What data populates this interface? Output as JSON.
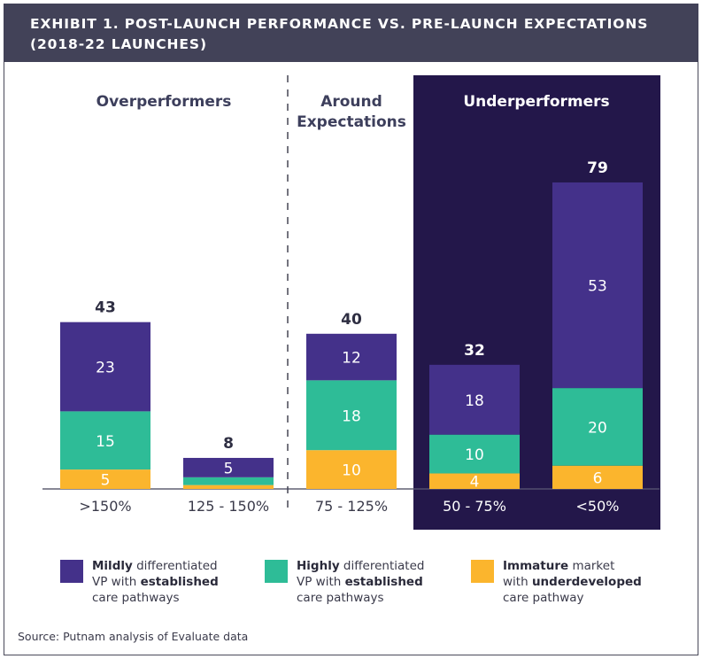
{
  "header": {
    "line1": "EXHIBIT 1. POST-LAUNCH PERFORMANCE VS. PRE-LAUNCH EXPECTATIONS",
    "line2": "(2018-22 LAUNCHES)"
  },
  "colors": {
    "header_bg": "#424258",
    "mildly": "#44318a",
    "highly": "#2ebc97",
    "immature": "#fbb52d",
    "underperformer_panel": "#23174a",
    "text_dark": "#3a3a4a"
  },
  "chart_data": {
    "type": "bar",
    "stacked": true,
    "title": "Exhibit 1. Post-launch performance vs. pre-launch expectations (2018-22 launches)",
    "xlabel": "",
    "ylabel": "",
    "ylim": [
      0,
      85
    ],
    "grid": false,
    "categories": [
      ">150%",
      "125 - 150%",
      "75 - 125%",
      "50 - 75%",
      "<50%"
    ],
    "groups": [
      {
        "label": "Overperformers",
        "categories": [
          ">150%",
          "125 - 150%"
        ]
      },
      {
        "label": "Around Expectations",
        "label_lines": [
          "Around",
          "Expectations"
        ],
        "categories": [
          "75 - 125%"
        ]
      },
      {
        "label": "Underperformers",
        "categories": [
          "50 - 75%",
          "<50%"
        ],
        "highlighted": true
      }
    ],
    "totals": [
      43,
      8,
      40,
      32,
      79
    ],
    "series": [
      {
        "name": "Immature market with underdeveloped care pathway",
        "key": "immature",
        "values": [
          5,
          1,
          10,
          4,
          6
        ],
        "labels": [
          "5",
          "",
          "10",
          "4",
          "6"
        ]
      },
      {
        "name": "Highly differentiated VP with established care pathways",
        "key": "highly",
        "values": [
          15,
          2,
          18,
          10,
          20
        ],
        "labels": [
          "15",
          "",
          "18",
          "10",
          "20"
        ]
      },
      {
        "name": "Mildly differentiated VP with established care pathways",
        "key": "mildly",
        "values": [
          23,
          5,
          12,
          18,
          53
        ],
        "labels": [
          "23",
          "5",
          "12",
          "18",
          "53"
        ]
      }
    ],
    "legend_position": "bottom"
  },
  "legend": [
    {
      "key": "mildly",
      "bold1": "Mildly",
      "rest1": " differentiated",
      "pre2": "VP with ",
      "bold2": "established",
      "line3": "care pathways"
    },
    {
      "key": "highly",
      "bold1": "Highly",
      "rest1": " differentiated",
      "pre2": "VP with ",
      "bold2": "established",
      "line3": "care pathways"
    },
    {
      "key": "immature",
      "bold1": "Immature",
      "rest1": " market",
      "pre2": "with ",
      "bold2": "underdeveloped",
      "line3": "care pathway"
    }
  ],
  "source": "Source: Putnam analysis of Evaluate data"
}
